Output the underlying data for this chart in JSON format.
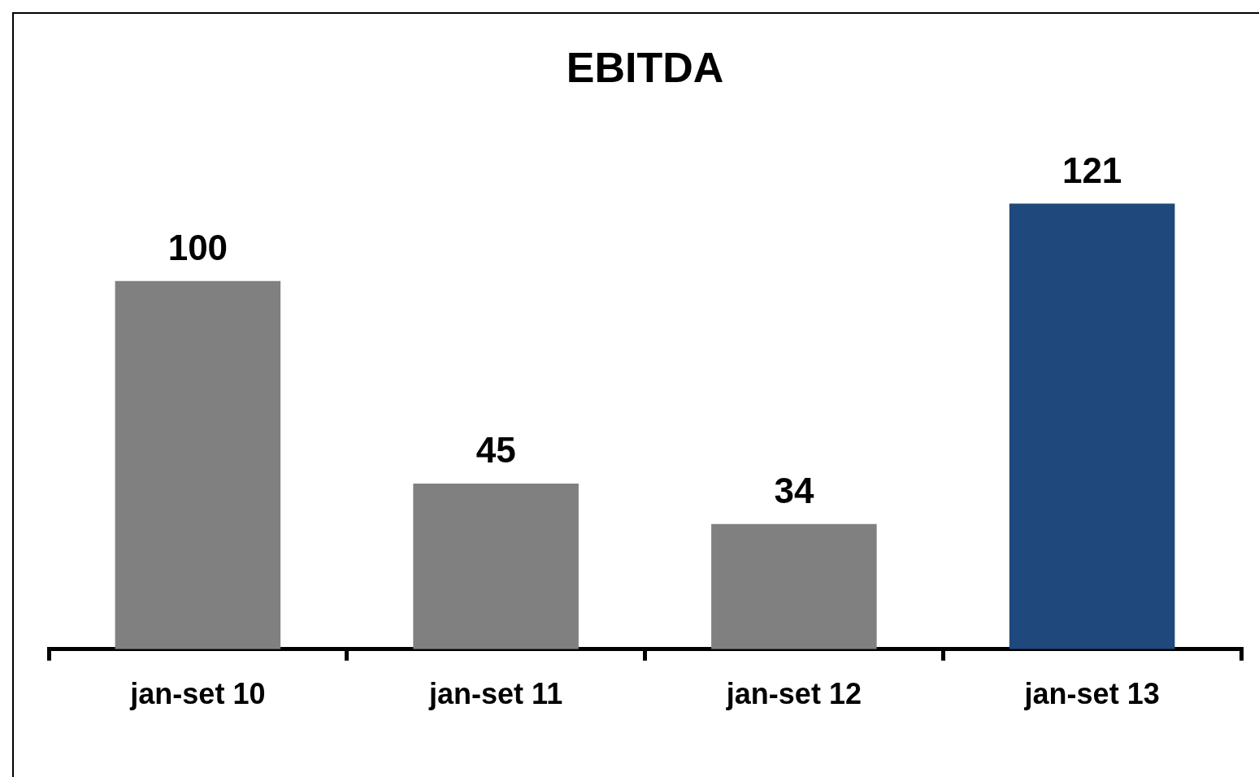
{
  "chart_data": {
    "type": "bar",
    "title": "EBITDA",
    "categories": [
      "jan-set 10",
      "jan-set 11",
      "jan-set 12",
      "jan-set 13"
    ],
    "values": [
      100,
      45,
      34,
      121
    ],
    "colors": [
      "#808080",
      "#808080",
      "#808080",
      "#1f497d"
    ],
    "data_labels": true
  }
}
